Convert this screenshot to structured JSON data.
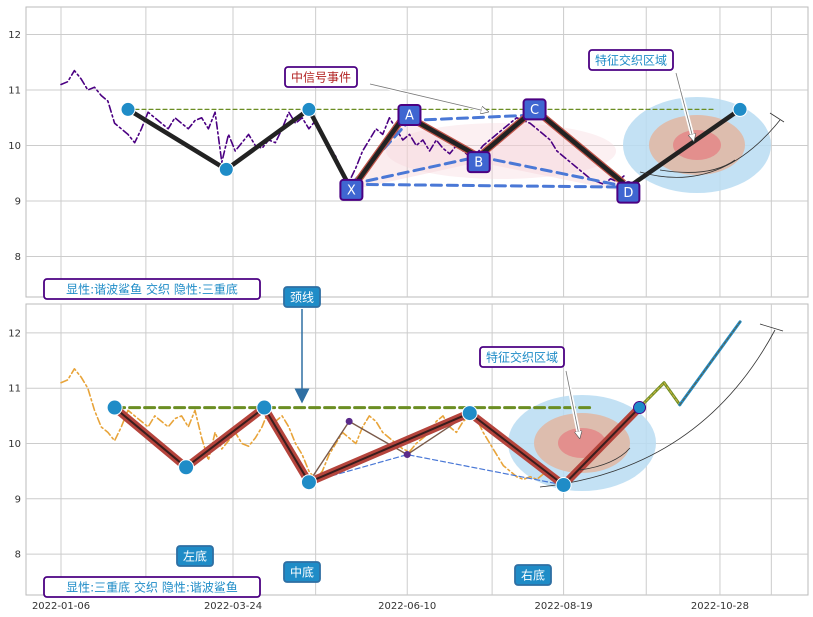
{
  "chart_data": [
    {
      "type": "line",
      "panel": "top",
      "y_ticks": [
        8,
        9,
        10,
        11,
        12
      ],
      "ylim": [
        7.2,
        12.5
      ],
      "grid": true,
      "series": [
        {
          "style": "dash-dot",
          "color": "#4b0082",
          "points": [
            [
              "2022-01-06",
              11.1
            ],
            [
              "2022-01-09",
              11.15
            ],
            [
              "2022-01-12",
              11.35
            ],
            [
              "2022-01-15",
              11.2
            ],
            [
              "2022-01-18",
              11.0
            ],
            [
              "2022-01-21",
              11.05
            ],
            [
              "2022-01-24",
              10.9
            ],
            [
              "2022-01-27",
              10.8
            ],
            [
              "2022-01-30",
              10.4
            ],
            [
              "2022-02-02",
              10.3
            ],
            [
              "2022-02-05",
              10.2
            ],
            [
              "2022-02-08",
              10.05
            ],
            [
              "2022-02-11",
              10.3
            ],
            [
              "2022-02-14",
              10.6
            ],
            [
              "2022-02-17",
              10.5
            ],
            [
              "2022-02-20",
              10.4
            ],
            [
              "2022-02-23",
              10.3
            ],
            [
              "2022-02-26",
              10.5
            ],
            [
              "2022-03-01",
              10.4
            ],
            [
              "2022-03-04",
              10.3
            ],
            [
              "2022-03-07",
              10.45
            ],
            [
              "2022-03-10",
              10.5
            ],
            [
              "2022-03-13",
              10.3
            ],
            [
              "2022-03-16",
              10.6
            ],
            [
              "2022-03-19",
              9.7
            ],
            [
              "2022-03-22",
              10.2
            ],
            [
              "2022-03-25",
              9.9
            ],
            [
              "2022-03-28",
              10.05
            ],
            [
              "2022-03-31",
              10.2
            ],
            [
              "2022-04-03",
              10.0
            ],
            [
              "2022-04-06",
              9.95
            ],
            [
              "2022-04-09",
              10.1
            ],
            [
              "2022-04-12",
              10.05
            ],
            [
              "2022-04-15",
              10.3
            ],
            [
              "2022-04-18",
              10.6
            ],
            [
              "2022-04-21",
              10.4
            ],
            [
              "2022-04-24",
              10.5
            ],
            [
              "2022-04-27",
              10.3
            ],
            [
              "2022-04-30",
              10.45
            ],
            [
              "2022-05-03",
              10.2
            ],
            [
              "2022-05-06",
              10.0
            ],
            [
              "2022-05-09",
              9.8
            ],
            [
              "2022-05-12",
              9.5
            ],
            [
              "2022-05-15",
              9.35
            ],
            [
              "2022-05-18",
              9.6
            ],
            [
              "2022-05-21",
              9.9
            ],
            [
              "2022-05-24",
              10.1
            ],
            [
              "2022-05-27",
              10.3
            ],
            [
              "2022-05-30",
              10.2
            ],
            [
              "2022-06-02",
              10.5
            ],
            [
              "2022-06-05",
              10.3
            ],
            [
              "2022-06-08",
              10.1
            ],
            [
              "2022-06-11",
              10.2
            ],
            [
              "2022-06-14",
              10.0
            ],
            [
              "2022-06-17",
              10.1
            ],
            [
              "2022-06-20",
              9.9
            ],
            [
              "2022-06-23",
              10.1
            ],
            [
              "2022-06-26",
              9.95
            ],
            [
              "2022-06-29",
              9.85
            ],
            [
              "2022-07-02",
              10.0
            ],
            [
              "2022-07-05",
              9.9
            ],
            [
              "2022-07-08",
              9.8
            ],
            [
              "2022-07-11",
              9.85
            ],
            [
              "2022-07-14",
              10.0
            ],
            [
              "2022-07-17",
              10.1
            ],
            [
              "2022-07-20",
              10.2
            ],
            [
              "2022-07-23",
              10.3
            ],
            [
              "2022-07-26",
              10.4
            ],
            [
              "2022-07-29",
              10.5
            ],
            [
              "2022-08-01",
              10.45
            ],
            [
              "2022-08-04",
              10.4
            ],
            [
              "2022-08-07",
              10.3
            ],
            [
              "2022-08-10",
              10.2
            ],
            [
              "2022-08-13",
              10.1
            ],
            [
              "2022-08-16",
              9.9
            ],
            [
              "2022-08-19",
              9.8
            ],
            [
              "2022-08-22",
              9.7
            ],
            [
              "2022-08-25",
              9.6
            ],
            [
              "2022-08-28",
              9.5
            ],
            [
              "2022-08-31",
              9.4
            ],
            [
              "2022-09-03",
              9.35
            ],
            [
              "2022-09-06",
              9.3
            ],
            [
              "2022-09-09",
              9.4
            ],
            [
              "2022-09-12",
              9.35
            ],
            [
              "2022-09-15",
              9.45
            ]
          ]
        }
      ],
      "pattern_lines": [
        {
          "style": "solid-thick",
          "color": "#222222",
          "points": [
            [
              "2022-02-05",
              10.65
            ],
            [
              "2022-03-21",
              9.57
            ],
            [
              "2022-04-27",
              10.65
            ],
            [
              "2022-05-16",
              9.2
            ],
            [
              "2022-06-09",
              10.55
            ],
            [
              "2022-07-12",
              9.8
            ],
            [
              "2022-08-06",
              10.65
            ],
            [
              "2022-09-17",
              9.25
            ],
            [
              "2022-11-06",
              10.65
            ]
          ]
        },
        {
          "style": "dashed",
          "color": "#4a78d6",
          "segments": [
            [
              [
                "2022-05-16",
                9.3
              ],
              [
                "2022-06-11",
                10.45
              ]
            ],
            [
              [
                "2022-06-11",
                10.45
              ],
              [
                "2022-08-06",
                10.55
              ]
            ],
            [
              [
                "2022-05-16",
                9.3
              ],
              [
                "2022-07-12",
                9.8
              ]
            ],
            [
              [
                "2022-07-12",
                9.8
              ],
              [
                "2022-09-17",
                9.25
              ]
            ],
            [
              [
                "2022-05-16",
                9.3
              ],
              [
                "2022-09-17",
                9.25
              ]
            ]
          ]
        },
        {
          "style": "dashed-thin",
          "color": "#6b8e23",
          "points": [
            [
              "2022-02-05",
              10.65
            ],
            [
              "2022-10-25",
              10.65
            ]
          ]
        }
      ],
      "point_labels": [
        {
          "text": "A",
          "x": "2022-06-11",
          "y": 10.55
        },
        {
          "text": "C",
          "x": "2022-08-06",
          "y": 10.65
        },
        {
          "text": "B",
          "x": "2022-07-12",
          "y": 9.7
        },
        {
          "text": "X",
          "x": "2022-05-16",
          "y": 9.2
        },
        {
          "text": "D",
          "x": "2022-09-17",
          "y": 9.15
        }
      ],
      "annotations": {
        "signal_event": "中信号事件",
        "feature_zone": "特征交织区域",
        "footer": "显性:谐波鲨鱼 交织 隐性:三重底"
      }
    },
    {
      "type": "line",
      "panel": "bottom",
      "x_ticks": [
        "2022-01-06",
        "2022-03-24",
        "2022-06-10",
        "2022-08-19",
        "2022-10-28"
      ],
      "y_ticks": [
        8,
        9,
        10,
        11,
        12
      ],
      "ylim": [
        7.2,
        12.5
      ],
      "grid": true,
      "series": [
        {
          "style": "dash-dot",
          "color": "#e8a43a",
          "points": [
            [
              "2022-01-06",
              11.1
            ],
            [
              "2022-01-09",
              11.15
            ],
            [
              "2022-01-12",
              11.35
            ],
            [
              "2022-01-15",
              11.2
            ],
            [
              "2022-01-18",
              11.0
            ],
            [
              "2022-01-21",
              10.6
            ],
            [
              "2022-01-24",
              10.3
            ],
            [
              "2022-01-27",
              10.2
            ],
            [
              "2022-01-30",
              10.05
            ],
            [
              "2022-02-02",
              10.3
            ],
            [
              "2022-02-05",
              10.6
            ],
            [
              "2022-02-08",
              10.5
            ],
            [
              "2022-02-11",
              10.4
            ],
            [
              "2022-02-14",
              10.3
            ],
            [
              "2022-02-17",
              10.5
            ],
            [
              "2022-02-20",
              10.4
            ],
            [
              "2022-02-23",
              10.3
            ],
            [
              "2022-02-26",
              10.45
            ],
            [
              "2022-03-01",
              10.5
            ],
            [
              "2022-03-04",
              10.3
            ],
            [
              "2022-03-07",
              10.6
            ],
            [
              "2022-03-10",
              10.1
            ],
            [
              "2022-03-13",
              9.7
            ],
            [
              "2022-03-16",
              10.2
            ],
            [
              "2022-03-19",
              9.9
            ],
            [
              "2022-03-22",
              10.05
            ],
            [
              "2022-03-25",
              10.2
            ],
            [
              "2022-03-28",
              10.0
            ],
            [
              "2022-03-31",
              9.95
            ],
            [
              "2022-04-03",
              10.1
            ],
            [
              "2022-04-06",
              10.3
            ],
            [
              "2022-04-09",
              10.6
            ],
            [
              "2022-04-12",
              10.4
            ],
            [
              "2022-04-15",
              10.5
            ],
            [
              "2022-04-18",
              10.3
            ],
            [
              "2022-04-21",
              10.0
            ],
            [
              "2022-04-24",
              9.8
            ],
            [
              "2022-04-27",
              9.5
            ],
            [
              "2022-04-30",
              9.35
            ],
            [
              "2022-05-03",
              9.5
            ],
            [
              "2022-05-06",
              9.8
            ],
            [
              "2022-05-09",
              10.0
            ],
            [
              "2022-05-12",
              10.2
            ],
            [
              "2022-05-15",
              10.1
            ],
            [
              "2022-05-18",
              10.0
            ],
            [
              "2022-05-21",
              10.3
            ],
            [
              "2022-05-24",
              10.5
            ],
            [
              "2022-05-27",
              10.4
            ],
            [
              "2022-05-30",
              10.2
            ],
            [
              "2022-06-02",
              10.1
            ],
            [
              "2022-06-05",
              10.0
            ],
            [
              "2022-06-08",
              9.9
            ],
            [
              "2022-06-11",
              9.85
            ],
            [
              "2022-06-14",
              10.0
            ],
            [
              "2022-06-17",
              10.1
            ],
            [
              "2022-06-20",
              10.2
            ],
            [
              "2022-06-23",
              10.4
            ],
            [
              "2022-06-26",
              10.5
            ],
            [
              "2022-06-29",
              10.3
            ],
            [
              "2022-07-02",
              10.2
            ],
            [
              "2022-07-05",
              10.4
            ],
            [
              "2022-07-08",
              10.5
            ],
            [
              "2022-07-11",
              10.45
            ],
            [
              "2022-07-14",
              10.2
            ],
            [
              "2022-07-17",
              10.0
            ],
            [
              "2022-07-20",
              9.8
            ],
            [
              "2022-07-23",
              9.6
            ],
            [
              "2022-07-26",
              9.5
            ],
            [
              "2022-07-29",
              9.4
            ],
            [
              "2022-08-01",
              9.35
            ],
            [
              "2022-08-04",
              9.4
            ],
            [
              "2022-08-07",
              9.35
            ],
            [
              "2022-08-10",
              9.45
            ]
          ]
        }
      ],
      "pattern_lines": [
        {
          "style": "solid-thick",
          "color": "#b5443c",
          "points": [
            [
              "2022-01-30",
              10.65
            ],
            [
              "2022-03-03",
              9.57
            ],
            [
              "2022-04-07",
              10.65
            ],
            [
              "2022-04-27",
              9.3
            ],
            [
              "2022-07-08",
              10.55
            ],
            [
              "2022-08-19",
              9.25
            ],
            [
              "2022-09-22",
              10.65
            ]
          ]
        },
        {
          "style": "dashed-thick",
          "color": "#6b8e23",
          "points": [
            [
              "2022-01-30",
              10.65
            ],
            [
              "2022-08-31",
              10.65
            ]
          ]
        },
        {
          "style": "solid-thin",
          "color": "#7a5a4a",
          "points": [
            [
              "2022-04-27",
              9.3
            ],
            [
              "2022-05-15",
              10.4
            ],
            [
              "2022-06-10",
              9.8
            ],
            [
              "2022-07-08",
              10.55
            ]
          ]
        },
        {
          "style": "dashed-thin",
          "color": "#4a78d6",
          "points": [
            [
              "2022-04-27",
              9.3
            ],
            [
              "2022-06-10",
              9.8
            ],
            [
              "2022-08-19",
              9.25
            ]
          ]
        },
        {
          "style": "projection",
          "color": "#6b8e23",
          "points": [
            [
              "2022-09-22",
              10.65
            ],
            [
              "2022-10-03",
              11.1
            ],
            [
              "2022-10-10",
              10.7
            ],
            [
              "2022-11-06",
              12.2
            ]
          ]
        }
      ],
      "annotations": {
        "neckline": "颈线",
        "feature_zone": "特征交织区域",
        "left_bottom": "左底",
        "mid_bottom": "中底",
        "right_bottom": "右底",
        "footer": "显性:三重底 交织 隐性:谐波鲨鱼"
      }
    }
  ]
}
